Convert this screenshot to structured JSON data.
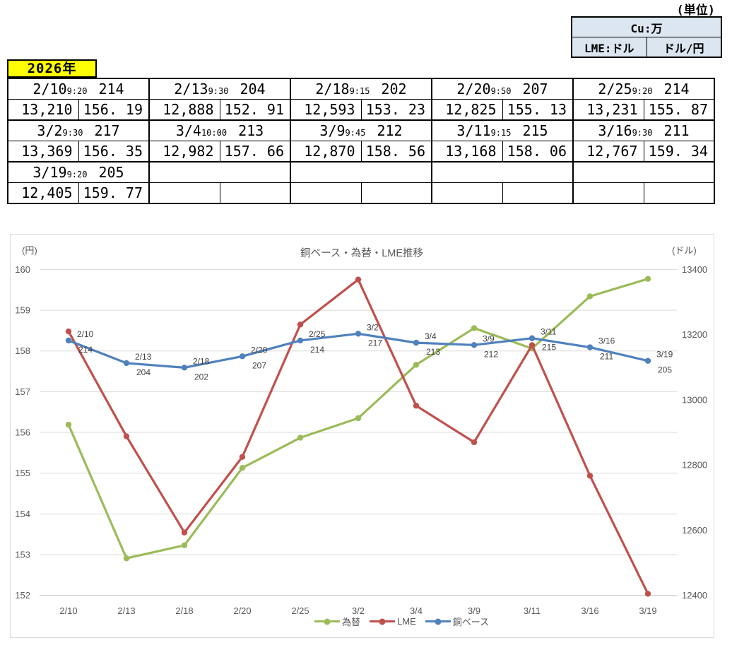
{
  "unit_note": "(単位)",
  "unit_table": {
    "row1": "Cu:万",
    "row2_left": "LME:ドル",
    "row2_right": "ドル/円"
  },
  "year_label": "2026年",
  "table": {
    "entries": [
      {
        "date": "2/10",
        "time": "9:20",
        "cu": "214",
        "lme": "13,210",
        "fx": "156. 19"
      },
      {
        "date": "2/13",
        "time": "9:30",
        "cu": "204",
        "lme": "12,888",
        "fx": "152. 91"
      },
      {
        "date": "2/18",
        "time": "9:15",
        "cu": "202",
        "lme": "12,593",
        "fx": "153. 23"
      },
      {
        "date": "2/20",
        "time": "9:50",
        "cu": "207",
        "lme": "12,825",
        "fx": "155. 13"
      },
      {
        "date": "2/25",
        "time": "9:20",
        "cu": "214",
        "lme": "13,231",
        "fx": "155. 87"
      },
      {
        "date": "3/2",
        "time": "9:30",
        "cu": "217",
        "lme": "13,369",
        "fx": "156. 35"
      },
      {
        "date": "3/4",
        "time": "10:00",
        "cu": "213",
        "lme": "12,982",
        "fx": "157. 66"
      },
      {
        "date": "3/9",
        "time": "9:45",
        "cu": "212",
        "lme": "12,870",
        "fx": "158. 56"
      },
      {
        "date": "3/11",
        "time": "9:15",
        "cu": "215",
        "lme": "13,168",
        "fx": "158. 06"
      },
      {
        "date": "3/16",
        "time": "9:30",
        "cu": "211",
        "lme": "12,767",
        "fx": "159. 34"
      },
      {
        "date": "3/19",
        "time": "9:20",
        "cu": "205",
        "lme": "12,405",
        "fx": "159. 77"
      }
    ]
  },
  "chart_data": {
    "type": "line",
    "title": "銅ベース・為替・LME推移",
    "grid": true,
    "legend_position": "bottom",
    "categories": [
      "2/10",
      "2/13",
      "2/18",
      "2/20",
      "2/25",
      "3/2",
      "3/4",
      "3/9",
      "3/11",
      "3/16",
      "3/19"
    ],
    "left_axis": {
      "unit": "(円)",
      "min": 152,
      "max": 160,
      "ticks": [
        160,
        159,
        158,
        157,
        156,
        155,
        154,
        153,
        152
      ]
    },
    "right_axis": {
      "unit": "(ドル)",
      "min": 12400,
      "max": 13400,
      "ticks": [
        13400,
        13200,
        13000,
        12800,
        12600,
        12400
      ]
    },
    "hidden_axis": {
      "min": 101.3,
      "max": 245.4
    },
    "series": [
      {
        "name": "為替",
        "axis": "left",
        "color": "#9BBB59",
        "values": [
          156.19,
          152.91,
          153.23,
          155.13,
          155.87,
          156.35,
          157.66,
          158.56,
          158.06,
          159.34,
          159.77
        ]
      },
      {
        "name": "LME",
        "axis": "right",
        "color": "#C0504D",
        "values": [
          13210,
          12888,
          12593,
          12825,
          13231,
          13369,
          12982,
          12870,
          13168,
          12767,
          12405
        ]
      },
      {
        "name": "銅ベース",
        "axis": "hidden",
        "color": "#4F81BD",
        "point_labels": true,
        "values": [
          214,
          204,
          202,
          207,
          214,
          217,
          213,
          212,
          215,
          211,
          205
        ]
      }
    ],
    "colors": {
      "gridline": "#D9D9D9",
      "axis_line": "#BFBFBF",
      "tick_text": "#595959",
      "title_text": "#595959",
      "data_label_text": "#404040"
    }
  }
}
